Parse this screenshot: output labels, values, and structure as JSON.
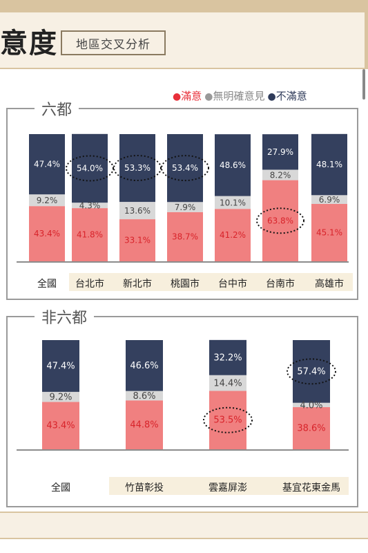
{
  "header": {
    "title": "意度",
    "subtitle": "地區交叉分析"
  },
  "legend": [
    {
      "label": "滿意",
      "color": "#e8303a"
    },
    {
      "label": "無明確意見",
      "color": "#999999"
    },
    {
      "label": "不滿意",
      "color": "#2f3b5a"
    }
  ],
  "colors": {
    "satisfied": "#f08080",
    "neutral": "#d8d8d8",
    "dissatisfied": "#34405e",
    "satisfied_text": "#d8232a",
    "dissatisfied_text": "#ffffff"
  },
  "chart_data": [
    {
      "type": "bar",
      "stacked": true,
      "title": "六都",
      "categories": [
        "全國",
        "台北市",
        "新北市",
        "桃園市",
        "台中市",
        "台南市",
        "高雄市"
      ],
      "series": [
        {
          "name": "滿意",
          "values": [
            43.4,
            41.8,
            33.1,
            38.7,
            41.2,
            63.8,
            45.1
          ]
        },
        {
          "name": "無明確意見",
          "values": [
            9.2,
            4.3,
            13.6,
            7.9,
            10.1,
            8.2,
            6.9
          ]
        },
        {
          "name": "不滿意",
          "values": [
            47.4,
            54.0,
            53.3,
            53.4,
            48.6,
            27.9,
            48.1
          ]
        }
      ],
      "value_labels": {
        "滿意": [
          "43.4%",
          "41.8%",
          "33.1%",
          "38.7%",
          "41.2%",
          "63.8%",
          "45.1%"
        ],
        "無明確意見": [
          "9.2%",
          "4.3%",
          "13.6%",
          "7.9%",
          "10.1%",
          "8.2%",
          "6.9%"
        ],
        "不滿意": [
          "47.4%",
          "54.0%",
          "53.3%",
          "53.4%",
          "48.6%",
          "27.9%",
          "48.1%"
        ]
      },
      "highlighted": [
        {
          "category": "台北市",
          "series": "不滿意"
        },
        {
          "category": "新北市",
          "series": "不滿意"
        },
        {
          "category": "桃園市",
          "series": "不滿意"
        },
        {
          "category": "台南市",
          "series": "滿意"
        }
      ],
      "ylim": [
        0,
        100
      ]
    },
    {
      "type": "bar",
      "stacked": true,
      "title": "非六都",
      "categories": [
        "全國",
        "竹苗彰投",
        "雲嘉屏澎",
        "基宜花東金馬"
      ],
      "series": [
        {
          "name": "滿意",
          "values": [
            43.4,
            44.8,
            53.5,
            38.6
          ]
        },
        {
          "name": "無明確意見",
          "values": [
            9.2,
            8.6,
            14.4,
            4.0
          ]
        },
        {
          "name": "不滿意",
          "values": [
            47.4,
            46.6,
            32.2,
            57.4
          ]
        }
      ],
      "value_labels": {
        "滿意": [
          "43.4%",
          "44.8%",
          "53.5%",
          "38.6%"
        ],
        "無明確意見": [
          "9.2%",
          "8.6%",
          "14.4%",
          "4.0%"
        ],
        "不滿意": [
          "47.4%",
          "46.6%",
          "32.2%",
          "57.4%"
        ]
      },
      "highlighted": [
        {
          "category": "雲嘉屏澎",
          "series": "滿意"
        },
        {
          "category": "基宜花東金馬",
          "series": "不滿意"
        }
      ],
      "ylim": [
        0,
        100
      ]
    }
  ]
}
